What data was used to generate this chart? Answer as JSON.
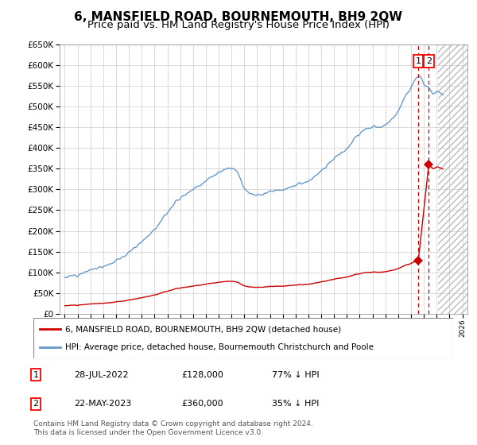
{
  "title": "6, MANSFIELD ROAD, BOURNEMOUTH, BH9 2QW",
  "subtitle": "Price paid vs. HM Land Registry's House Price Index (HPI)",
  "legend_line1": "6, MANSFIELD ROAD, BOURNEMOUTH, BH9 2QW (detached house)",
  "legend_line2": "HPI: Average price, detached house, Bournemouth Christchurch and Poole",
  "footnote": "Contains HM Land Registry data © Crown copyright and database right 2024.\nThis data is licensed under the Open Government Licence v3.0.",
  "sale1_date": "28-JUL-2022",
  "sale1_price": "£128,000",
  "sale1_hpi": "77% ↓ HPI",
  "sale2_date": "22-MAY-2023",
  "sale2_price": "£360,000",
  "sale2_hpi": "35% ↓ HPI",
  "sale1_year": 2022.57,
  "sale1_value": 128000,
  "sale2_year": 2023.38,
  "sale2_value": 360000,
  "hpi_color": "#6699cc",
  "price_color": "#cc0000",
  "ylim": [
    0,
    650000
  ],
  "xlim_start": 1994.6,
  "xlim_end": 2026.4,
  "hatch_start": 2024.08,
  "grid_color": "#cccccc",
  "title_fontsize": 11,
  "subtitle_fontsize": 9.5
}
